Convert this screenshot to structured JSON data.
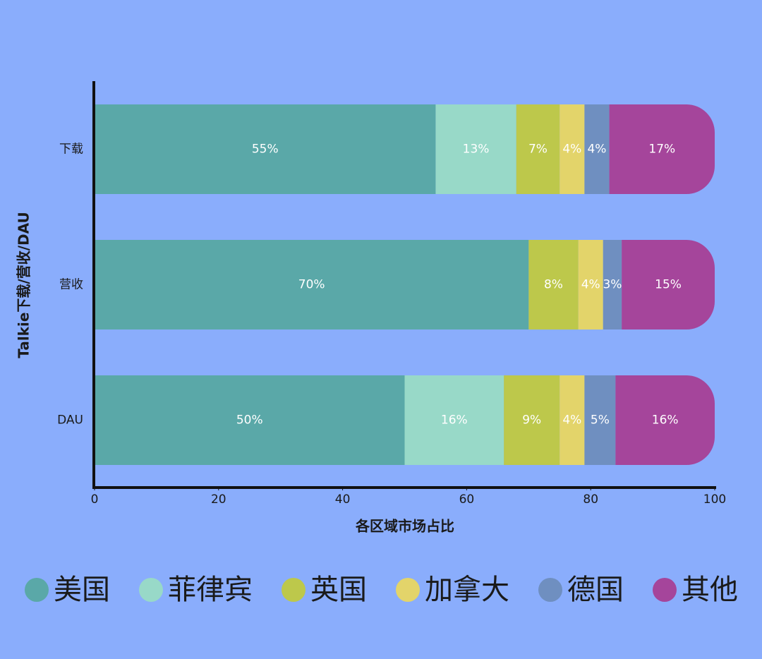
{
  "chart_data": {
    "type": "stacked-bar-horizontal",
    "x_label": "各区域市场占比",
    "y_label": "Talkie下载/营收/DAU",
    "categories": [
      "下载",
      "营收",
      "DAU"
    ],
    "series": [
      {
        "name": "美国",
        "color": "#5aa8a8",
        "values": [
          55,
          70,
          50
        ],
        "value_labels": [
          "55%",
          "70%",
          "50%"
        ]
      },
      {
        "name": "菲律宾",
        "color": "#98d9c8",
        "values": [
          13,
          null,
          16
        ],
        "value_labels": [
          "13%",
          null,
          "16%"
        ]
      },
      {
        "name": "英国",
        "color": "#bdc84b",
        "values": [
          7,
          8,
          9
        ],
        "value_labels": [
          "7%",
          "8%",
          "9%"
        ]
      },
      {
        "name": "加拿大",
        "color": "#e3d46a",
        "values": [
          4,
          4,
          4
        ],
        "value_labels": [
          "4%",
          "4%",
          "4%"
        ]
      },
      {
        "name": "德国",
        "color": "#6f8fc0",
        "values": [
          4,
          3,
          5
        ],
        "value_labels": [
          "4%",
          "3%",
          "5%"
        ]
      },
      {
        "name": "其他",
        "color": "#a5459b",
        "values": [
          17,
          15,
          16
        ],
        "value_labels": [
          "17%",
          "15%",
          "16%"
        ]
      }
    ],
    "xlim": [
      0,
      100
    ],
    "xticks": [
      0,
      20,
      40,
      60,
      80,
      100
    ],
    "legend": "bottom"
  }
}
